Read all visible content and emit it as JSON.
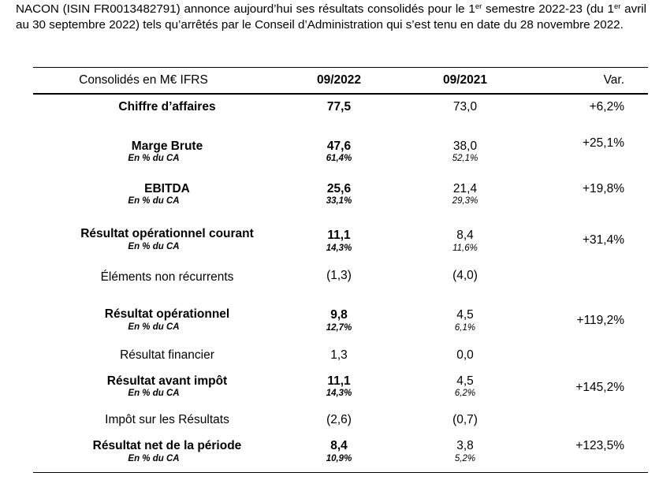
{
  "intro": {
    "p1": "NACON (ISIN FR0013482791) annonce aujourd’hui ses résultats consolidés pour le 1",
    "sup1": "er",
    "p2": " semestre 2022-23 (du 1",
    "sup2": "er",
    "p3": " avril au 30 septembre 2022) tels qu’arrêtés par le Conseil d’Administration qui s’est tenu en date du 28 novembre 2022."
  },
  "table": {
    "header": {
      "label": "Consolidés en M€ IFRS",
      "col1": "09/2022",
      "col2": "09/2021",
      "col3": "Var."
    },
    "rows": [
      {
        "label": "Chiffre d’affaires",
        "v1": "77,5",
        "v2": "73,0",
        "var": "+6,2%"
      },
      {
        "label": "Marge Brute",
        "sublabel": "En % du CA",
        "v1": "47,6",
        "p1": "61,4%",
        "v2": "38,0",
        "p2": "52,1%",
        "var": "+25,1%"
      },
      {
        "label": "EBITDA",
        "sublabel": "En % du CA",
        "v1": "25,6",
        "p1": "33,1%",
        "v2": "21,4",
        "p2": "29,3%",
        "var": "+19,8%"
      },
      {
        "label": "Résultat opérationnel courant",
        "sublabel": "En % du CA",
        "v1": "11,1",
        "p1": "14,3%",
        "v2": "8,4",
        "p2": "11,6%",
        "var": "+31,4%"
      },
      {
        "label": "Éléments non récurrents",
        "v1": "(1,3)",
        "v2": "(4,0)"
      },
      {
        "label": "Résultat opérationnel",
        "sublabel": "En % du CA",
        "v1": "9,8",
        "p1": "12,7%",
        "v2": "4,5",
        "p2": "6,1%",
        "var": "+119,2%"
      },
      {
        "label": "Résultat financier",
        "v1": "1,3",
        "v2": "0,0"
      },
      {
        "label": "Résultat avant impôt",
        "sublabel": "En % du CA",
        "v1": "11,1",
        "p1": "14,3%",
        "v2": "4,5",
        "p2": "6,2%",
        "var": "+145,2%"
      },
      {
        "label": "Impôt sur les Résultats",
        "v1": "(2,6)",
        "v2": "(0,7)"
      },
      {
        "label": "Résultat net de la période",
        "sublabel": "En % du CA",
        "v1": "8,4",
        "p1": "10,9%",
        "v2": "3,8",
        "p2": "5,2%",
        "var": "+123,5%"
      }
    ]
  }
}
